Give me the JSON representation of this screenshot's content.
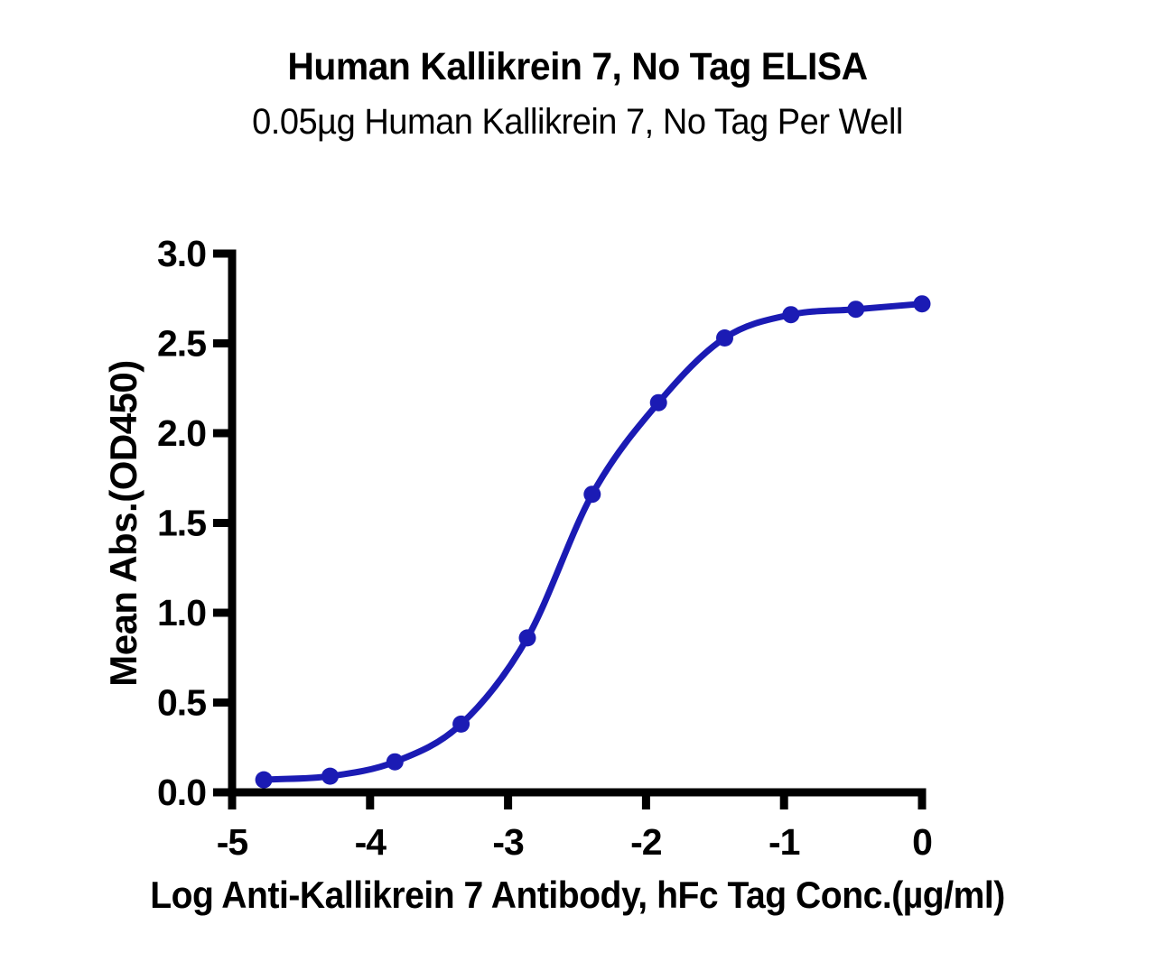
{
  "chart_data": {
    "type": "scatter",
    "title": "Human Kallikrein 7, No Tag ELISA",
    "subtitle": "0.05µg Human Kallikrein 7, No Tag Per Well",
    "xlabel": "Log Anti-Kallikrein 7 Antibody, hFc Tag Conc.(µg/ml)",
    "ylabel": "Mean Abs.(OD450)",
    "xlim": [
      -5,
      0
    ],
    "ylim": [
      0,
      3
    ],
    "x_ticks": [
      -5,
      -4,
      -3,
      -2,
      -1,
      0
    ],
    "x_tick_labels": [
      "-5",
      "-4",
      "-3",
      "-2",
      "-1",
      "0"
    ],
    "y_ticks": [
      0,
      0.5,
      1,
      1.5,
      2,
      2.5,
      3
    ],
    "y_tick_labels": [
      "0.0",
      "0.5",
      "1.0",
      "1.5",
      "2.0",
      "2.5",
      "3.0"
    ],
    "grid": false,
    "legend_position": "none",
    "axis_color": "#000000",
    "series": [
      {
        "name": "Anti-Kallikrein 7 Antibody, hFc Tag",
        "curve_type": "4PL sigmoid fit",
        "line_color": "#1B1BB4",
        "marker_color": "#1B1BB4",
        "x": [
          -4.77,
          -4.29,
          -3.82,
          -3.34,
          -2.86,
          -2.39,
          -1.91,
          -1.43,
          -0.95,
          -0.48,
          0.0
        ],
        "y": [
          0.07,
          0.09,
          0.17,
          0.38,
          0.86,
          1.66,
          2.17,
          2.53,
          2.66,
          2.69,
          2.72
        ]
      }
    ]
  }
}
